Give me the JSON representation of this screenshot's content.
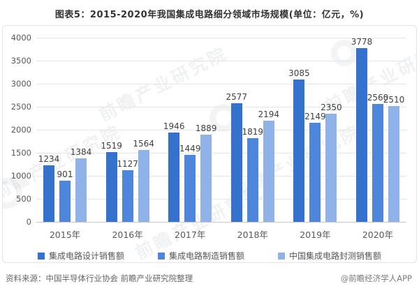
{
  "title": "图表5：2015-2020年我国集成电路细分领域市场规模(单位：亿元，%)",
  "chart_data": {
    "type": "bar",
    "categories": [
      "2015年",
      "2016年",
      "2017年",
      "2018年",
      "2019年",
      "2020年"
    ],
    "series": [
      {
        "name": "集成电路设计销售额",
        "color": "#3472CE",
        "values": [
          1234,
          1519,
          1946,
          2577,
          3085,
          3778
        ]
      },
      {
        "name": "集成电路制造销售额",
        "color": "#4E86DC",
        "values": [
          901,
          1127,
          1449,
          1819,
          2149,
          2560
        ]
      },
      {
        "name": "中国集成电路封测销售额",
        "color": "#8FB2E8",
        "values": [
          1384,
          1564,
          1889,
          2194,
          2350,
          2510
        ]
      }
    ],
    "title": "图表5：2015-2020年我国集成电路细分领域市场规模(单位：亿元，%)",
    "xlabel": "",
    "ylabel": "",
    "ylim": [
      0,
      4000
    ],
    "y_ticks": [
      0,
      500,
      1000,
      1500,
      2000,
      2500,
      3000,
      3500,
      4000
    ],
    "grid": true,
    "legend_position": "bottom",
    "value_labels": true
  },
  "watermark": {
    "text": "前瞻产业研究院"
  },
  "footer": {
    "source": "资料来源：中国半导体行业协会 前瞻产业研究院整理",
    "credit": "@前瞻经济学人APP"
  }
}
